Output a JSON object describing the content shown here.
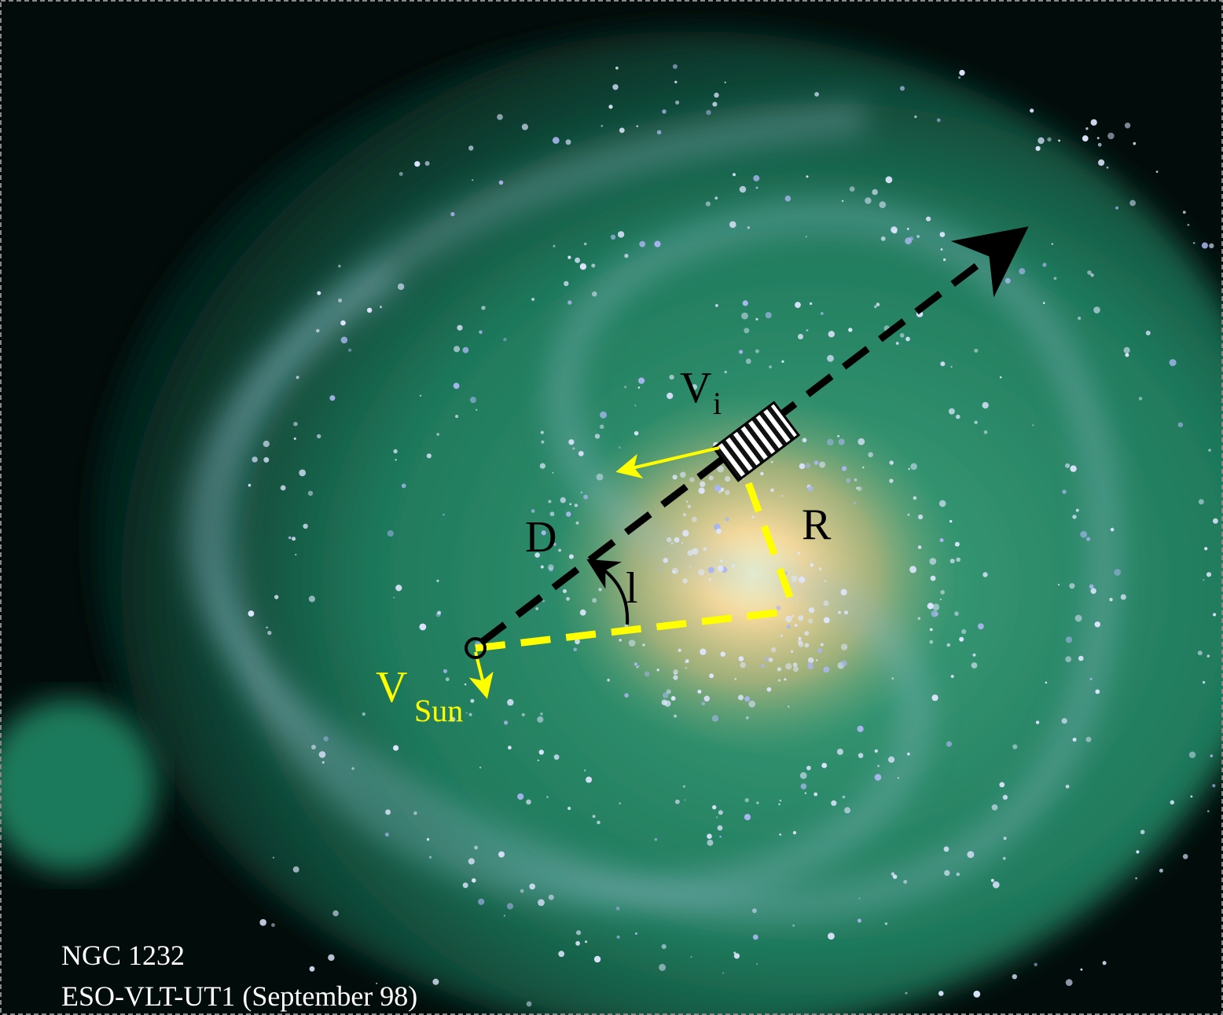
{
  "labels": {
    "v_i": {
      "main": "V",
      "sub": "i"
    },
    "r": "R",
    "d": "D",
    "l": "l",
    "v_sun": {
      "main": "V",
      "sub": "Sun"
    }
  },
  "caption": [
    "NGC 1232",
    "ESO-VLT-UT1 (September 98)"
  ]
}
